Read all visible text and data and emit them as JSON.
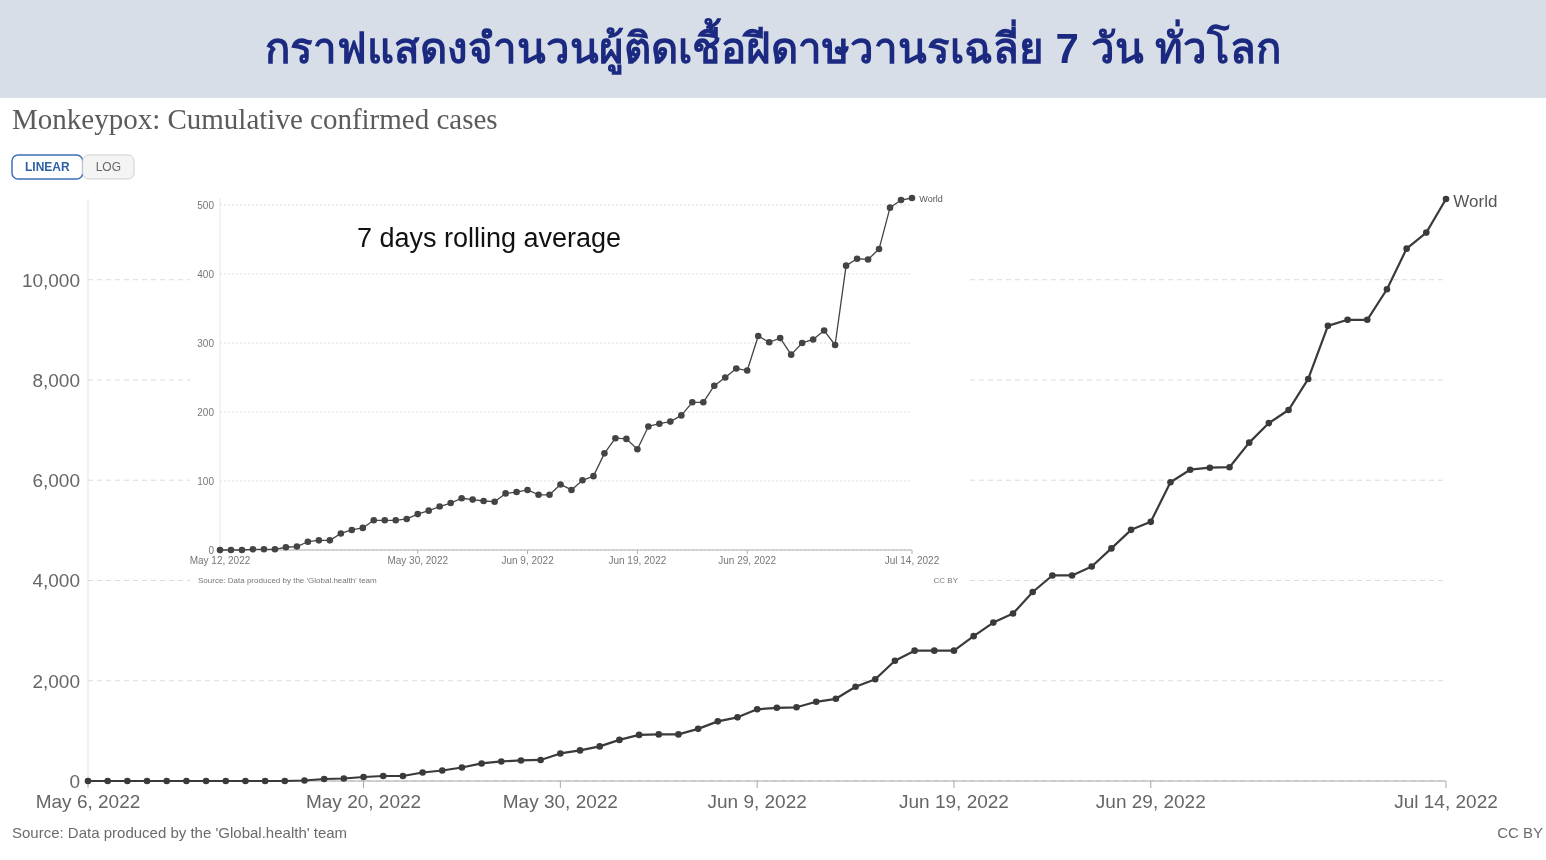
{
  "chart_data": [
    {
      "type": "line",
      "title": "กราฟแสดงจำนวนผู้ติดเชื้อฝีดาษวานรเฉลี่ย 7 วัน ทั่วโลก",
      "subtitle": "Monkeypox: Cumulative confirmed cases",
      "x": [
        "2022-05-06",
        "2022-05-07",
        "2022-05-08",
        "2022-05-09",
        "2022-05-10",
        "2022-05-11",
        "2022-05-12",
        "2022-05-13",
        "2022-05-14",
        "2022-05-15",
        "2022-05-16",
        "2022-05-17",
        "2022-05-18",
        "2022-05-19",
        "2022-05-20",
        "2022-05-21",
        "2022-05-22",
        "2022-05-23",
        "2022-05-24",
        "2022-05-25",
        "2022-05-26",
        "2022-05-27",
        "2022-05-28",
        "2022-05-29",
        "2022-05-30",
        "2022-05-31",
        "2022-06-01",
        "2022-06-02",
        "2022-06-03",
        "2022-06-04",
        "2022-06-05",
        "2022-06-06",
        "2022-06-07",
        "2022-06-08",
        "2022-06-09",
        "2022-06-10",
        "2022-06-11",
        "2022-06-12",
        "2022-06-13",
        "2022-06-14",
        "2022-06-15",
        "2022-06-16",
        "2022-06-17",
        "2022-06-18",
        "2022-06-19",
        "2022-06-20",
        "2022-06-21",
        "2022-06-22",
        "2022-06-23",
        "2022-06-24",
        "2022-06-25",
        "2022-06-26",
        "2022-06-27",
        "2022-06-28",
        "2022-06-29",
        "2022-06-30",
        "2022-07-01",
        "2022-07-02",
        "2022-07-03",
        "2022-07-04",
        "2022-07-05",
        "2022-07-06",
        "2022-07-07",
        "2022-07-08",
        "2022-07-09",
        "2022-07-10",
        "2022-07-11",
        "2022-07-12",
        "2022-07-13",
        "2022-07-14"
      ],
      "series": [
        {
          "name": "World",
          "color": "#3a3a3a",
          "values": [
            0,
            0,
            0,
            0,
            0,
            0,
            0,
            0,
            0,
            0,
            0,
            10,
            40,
            50,
            80,
            100,
            100,
            170,
            210,
            270,
            350,
            390,
            410,
            420,
            550,
            610,
            690,
            820,
            920,
            930,
            930,
            1040,
            1190,
            1270,
            1430,
            1460,
            1470,
            1580,
            1640,
            1880,
            2030,
            2400,
            2600,
            2600,
            2600,
            2890,
            3160,
            3340,
            3770,
            4100,
            4100,
            4280,
            4640,
            5010,
            5170,
            5960,
            6210,
            6250,
            6260,
            6750,
            7140,
            7400,
            8020,
            9080,
            9200,
            9200,
            9810,
            10620,
            10940,
            11610
          ]
        }
      ],
      "xlim": [
        "2022-05-06",
        "2022-07-14"
      ],
      "xticks": [
        {
          "value": "2022-05-06",
          "label": "May 6, 2022"
        },
        {
          "value": "2022-05-20",
          "label": "May 20, 2022"
        },
        {
          "value": "2022-05-30",
          "label": "May 30, 2022"
        },
        {
          "value": "2022-06-09",
          "label": "Jun 9, 2022"
        },
        {
          "value": "2022-06-19",
          "label": "Jun 19, 2022"
        },
        {
          "value": "2022-06-29",
          "label": "Jun 29, 2022"
        },
        {
          "value": "2022-07-14",
          "label": "Jul 14, 2022"
        }
      ],
      "ylim": [
        0,
        11610
      ],
      "yticks": [
        0,
        {
          "value": 2000,
          "label": "2,000"
        },
        {
          "value": 4000,
          "label": "4,000"
        },
        {
          "value": 6000,
          "label": "6,000"
        },
        {
          "value": 8000,
          "label": "8,000"
        },
        {
          "value": 10000,
          "label": "10,000"
        }
      ],
      "grid": "y",
      "marker": "circle",
      "line_style": "solid",
      "annotations": [
        "LINEAR",
        "LOG",
        "Source: Data produced by the 'Global.health' team",
        "CC BY"
      ]
    },
    {
      "type": "line",
      "title": "7 days rolling average",
      "x": [
        "2022-05-12",
        "2022-05-13",
        "2022-05-14",
        "2022-05-15",
        "2022-05-16",
        "2022-05-17",
        "2022-05-18",
        "2022-05-19",
        "2022-05-20",
        "2022-05-21",
        "2022-05-22",
        "2022-05-23",
        "2022-05-24",
        "2022-05-25",
        "2022-05-26",
        "2022-05-27",
        "2022-05-28",
        "2022-05-29",
        "2022-05-30",
        "2022-05-31",
        "2022-06-01",
        "2022-06-02",
        "2022-06-03",
        "2022-06-04",
        "2022-06-05",
        "2022-06-06",
        "2022-06-07",
        "2022-06-08",
        "2022-06-09",
        "2022-06-10",
        "2022-06-11",
        "2022-06-12",
        "2022-06-13",
        "2022-06-14",
        "2022-06-15",
        "2022-06-16",
        "2022-06-17",
        "2022-06-18",
        "2022-06-19",
        "2022-06-20",
        "2022-06-21",
        "2022-06-22",
        "2022-06-23",
        "2022-06-24",
        "2022-06-25",
        "2022-06-26",
        "2022-06-27",
        "2022-06-28",
        "2022-06-29",
        "2022-06-30",
        "2022-07-01",
        "2022-07-02",
        "2022-07-03",
        "2022-07-04",
        "2022-07-05",
        "2022-07-06",
        "2022-07-07",
        "2022-07-08",
        "2022-07-09",
        "2022-07-10",
        "2022-07-11",
        "2022-07-12",
        "2022-07-13",
        "2022-07-14"
      ],
      "series": [
        {
          "name": "World",
          "color": "#444444",
          "values": [
            0,
            0,
            0,
            1,
            1,
            1,
            4,
            5,
            12,
            14,
            14,
            24,
            29,
            32,
            43,
            43,
            43,
            45,
            52,
            57,
            63,
            68,
            75,
            73,
            71,
            70,
            82,
            84,
            87,
            80,
            80,
            95,
            87,
            101,
            107,
            140,
            162,
            161,
            146,
            179,
            183,
            186,
            195,
            214,
            214,
            238,
            250,
            263,
            260,
            310,
            301,
            307,
            283,
            300,
            305,
            318,
            297,
            412,
            422,
            421,
            436,
            496,
            507,
            510
          ]
        }
      ],
      "xlim": [
        "2022-05-12",
        "2022-07-14"
      ],
      "xticks": [
        {
          "value": "2022-05-12",
          "label": "May 12, 2022"
        },
        {
          "value": "2022-05-30",
          "label": "May 30, 2022"
        },
        {
          "value": "2022-06-09",
          "label": "Jun 9, 2022"
        },
        {
          "value": "2022-06-19",
          "label": "Jun 19, 2022"
        },
        {
          "value": "2022-06-29",
          "label": "Jun 29, 2022"
        },
        {
          "value": "2022-07-14",
          "label": "Jul 14, 2022"
        }
      ],
      "ylim": [
        0,
        510
      ],
      "yticks": [
        0,
        100,
        200,
        300,
        400,
        500
      ],
      "grid": "y",
      "marker": "circle",
      "line_style": "solid",
      "annotations": [
        "Source: Data produced by the 'Global.health' team",
        "CC BY"
      ]
    }
  ]
}
